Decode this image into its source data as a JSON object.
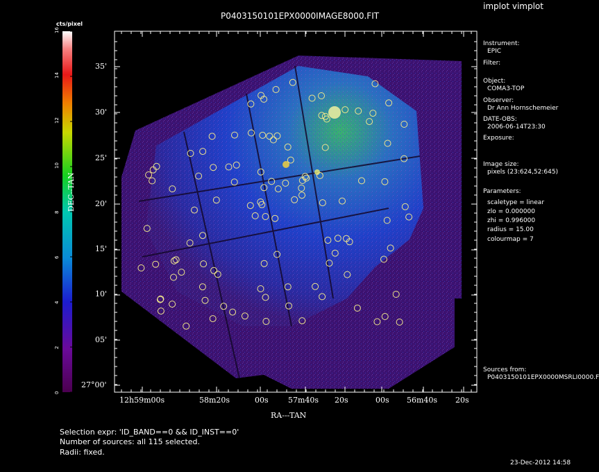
{
  "app_title": "implot vimplot",
  "chart_data": {
    "type": "heatmap",
    "title": "P0403150101EPX0000IMAGE8000.FIT",
    "xlabel": "RA---TAN",
    "ylabel": "DEC--TAN",
    "xticks": [
      "12h59m00s",
      "58m20s",
      "00s",
      "57m40s",
      "20s",
      "00s",
      "56m40s",
      "20s"
    ],
    "yticks": [
      "27°00'",
      "05'",
      "10'",
      "15'",
      "20'",
      "25'",
      "30'",
      "35'"
    ],
    "colorbar": {
      "label": "cts/pixel",
      "ticks": [
        "0",
        "2",
        "4",
        "6",
        "8",
        "10",
        "12",
        "14",
        "16"
      ],
      "range": [
        0,
        16
      ],
      "colormap": "rainbow"
    },
    "source_count": 115,
    "source_color": "#f0e68c"
  },
  "info_panel": {
    "instrument_label": "Instrument:",
    "instrument_value": "EPIC",
    "filter_label": "Filter:",
    "object_label": "Object:",
    "object_value": "COMA3-TOP",
    "observer_label": "Observer:",
    "observer_value": "Dr Ann Hornschemeier",
    "date_label": "DATE-OBS:",
    "date_value": "2006-06-14T23:30",
    "exposure_label": "Exposure:",
    "image_size_label": "Image size:",
    "image_size_value": "pixels (23:624,52:645)",
    "parameters_label": "Parameters:",
    "param_scaletype": "scaletype = linear",
    "param_zlo": "zlo = 0.000000",
    "param_zhi": "zhi = 0.996000",
    "param_radius": "radius = 15.00",
    "param_colourmap": "colourmap = 7",
    "sources_label": "Sources from:",
    "sources_value": "P0403150101EPX0000MSRLI0000.F"
  },
  "footer": {
    "selection_expr": "Selection expr: 'ID_BAND==0 && ID_INST==0'",
    "num_sources": "Number of sources: all 115 selected.",
    "radii": "Radii: fixed.",
    "timestamp": "23-Dec-2012 14:58"
  }
}
